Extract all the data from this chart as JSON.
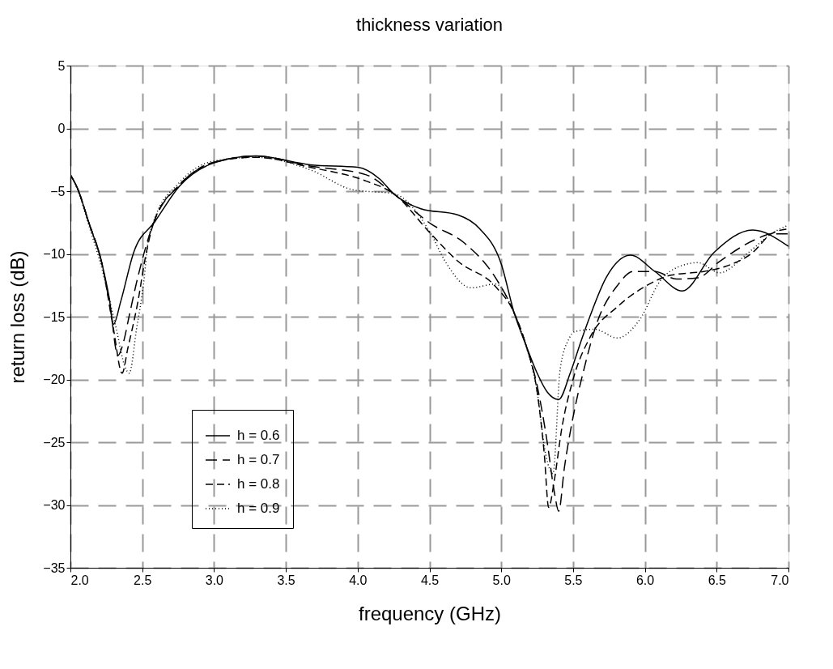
{
  "chart_data": {
    "type": "line",
    "title": "thickness variation",
    "xlabel": "frequency (GHz)",
    "ylabel": "return loss (dB)",
    "xlim": [
      2.0,
      7.0
    ],
    "xticks": [
      {
        "value": 2.0,
        "label": "2.0"
      },
      {
        "value": 2.5,
        "label": "2.5"
      },
      {
        "value": 3.0,
        "label": "3.0"
      },
      {
        "value": 3.5,
        "label": "3.5"
      },
      {
        "value": 4.0,
        "label": "4.0"
      },
      {
        "value": 4.5,
        "label": "4.5"
      },
      {
        "value": 5.0,
        "label": "5.0"
      },
      {
        "value": 5.5,
        "label": "5.5"
      },
      {
        "value": 6.0,
        "label": "6.0"
      },
      {
        "value": 6.5,
        "label": "6.5"
      },
      {
        "value": 7.0,
        "label": "7.0"
      }
    ],
    "ylim": [
      -35,
      5
    ],
    "yticks": [
      -35,
      -30,
      -25,
      -20,
      -15,
      -10,
      -5,
      0,
      5
    ],
    "grid": true,
    "legend": "bottom left",
    "marker": "none",
    "series": [
      {
        "name": "h = 0.6",
        "color": "#000000",
        "line_style": "solid",
        "x": [
          2.0,
          2.05,
          2.125,
          2.22,
          2.27,
          2.3,
          2.35,
          2.44,
          2.59,
          2.76,
          3.0,
          3.29,
          3.67,
          4.0,
          4.15,
          4.25,
          4.44,
          4.7,
          4.85,
          5.0,
          5.09,
          5.17,
          5.25,
          5.32,
          5.4,
          5.48,
          5.56,
          5.62,
          5.73,
          5.9,
          6.07,
          6.26,
          6.48,
          6.75,
          7.0
        ],
        "values": [
          -3.7,
          -4.8,
          -7.4,
          -10.8,
          -13.5,
          -15.6,
          -13.8,
          -9.9,
          -7.4,
          -4.6,
          -2.75,
          -2.2,
          -2.9,
          -3.1,
          -4.0,
          -5.2,
          -6.4,
          -6.9,
          -8.0,
          -10.8,
          -14.7,
          -17.2,
          -19.5,
          -21.0,
          -21.6,
          -19.5,
          -16.8,
          -14.9,
          -11.9,
          -10.1,
          -11.4,
          -12.95,
          -9.9,
          -8.1,
          -9.4
        ]
      },
      {
        "name": "h = 0.7",
        "color": "#000000",
        "line_style": "dashed",
        "x": [
          2.0,
          2.05,
          2.125,
          2.22,
          2.28,
          2.33,
          2.37,
          2.41,
          2.46,
          2.58,
          2.76,
          3.0,
          3.29,
          3.67,
          4.06,
          4.25,
          4.51,
          4.74,
          4.96,
          5.09,
          5.17,
          5.25,
          5.32,
          5.37,
          5.4,
          5.44,
          5.5,
          5.58,
          5.66,
          5.81,
          5.92,
          6.07,
          6.22,
          6.37,
          6.52,
          6.78,
          6.88,
          7.0
        ],
        "values": [
          -3.7,
          -4.8,
          -7.4,
          -10.8,
          -14.5,
          -18.1,
          -17.0,
          -14.9,
          -12.3,
          -7.5,
          -4.5,
          -2.7,
          -2.2,
          -3.0,
          -3.7,
          -5.2,
          -7.6,
          -9.1,
          -11.9,
          -14.7,
          -17.2,
          -20.5,
          -25,
          -29,
          -30.5,
          -27,
          -23,
          -19,
          -15.7,
          -12.5,
          -11.4,
          -11.4,
          -12.0,
          -11.9,
          -10.6,
          -8.8,
          -8.4,
          -8.4
        ]
      },
      {
        "name": "h = 0.8",
        "color": "#000000",
        "line_style": "dashed",
        "x": [
          2.0,
          2.05,
          2.125,
          2.22,
          2.3,
          2.36,
          2.4,
          2.47,
          2.52,
          2.58,
          2.76,
          3.0,
          3.29,
          3.67,
          4.06,
          4.25,
          4.51,
          4.7,
          4.96,
          5.09,
          5.17,
          5.25,
          5.3,
          5.33,
          5.37,
          5.42,
          5.5,
          5.62,
          5.81,
          6.0,
          6.18,
          6.41,
          6.56,
          6.75,
          6.88,
          7.0
        ],
        "values": [
          -3.7,
          -4.8,
          -7.4,
          -10.8,
          -16.0,
          -19.5,
          -17.5,
          -13.8,
          -10.4,
          -7.5,
          -4.5,
          -2.7,
          -2.3,
          -3.1,
          -4.2,
          -5.2,
          -8.4,
          -10.6,
          -12.6,
          -14.7,
          -17.2,
          -21,
          -26,
          -30.2,
          -28,
          -24,
          -20,
          -16.6,
          -14.2,
          -12.6,
          -11.7,
          -11.4,
          -11.0,
          -9.9,
          -8.4,
          -8.0
        ]
      },
      {
        "name": "h = 0.9",
        "color": "#000000",
        "line_style": "dotted",
        "x": [
          2.0,
          2.05,
          2.125,
          2.22,
          2.32,
          2.38,
          2.41,
          2.46,
          2.51,
          2.54,
          2.58,
          2.76,
          3.0,
          3.29,
          3.67,
          3.97,
          4.25,
          4.51,
          4.61,
          4.79,
          4.96,
          5.09,
          5.17,
          5.25,
          5.31,
          5.36,
          5.41,
          5.47,
          5.51,
          5.65,
          5.81,
          5.96,
          6.11,
          6.24,
          6.37,
          6.52,
          6.72,
          6.88,
          7.0
        ],
        "values": [
          -3.7,
          -4.9,
          -7.6,
          -11.2,
          -16.0,
          -19.0,
          -19.5,
          -16.0,
          -12.3,
          -9.1,
          -7.4,
          -4.3,
          -2.6,
          -2.3,
          -3.3,
          -4.9,
          -5.2,
          -8.4,
          -10.6,
          -12.7,
          -12.4,
          -14.7,
          -17.2,
          -21,
          -26,
          -27.5,
          -19.2,
          -16.8,
          -16.2,
          -16.0,
          -16.7,
          -15.3,
          -12.1,
          -11.0,
          -10.7,
          -11.5,
          -9.9,
          -8.4,
          -7.7
        ]
      }
    ]
  }
}
